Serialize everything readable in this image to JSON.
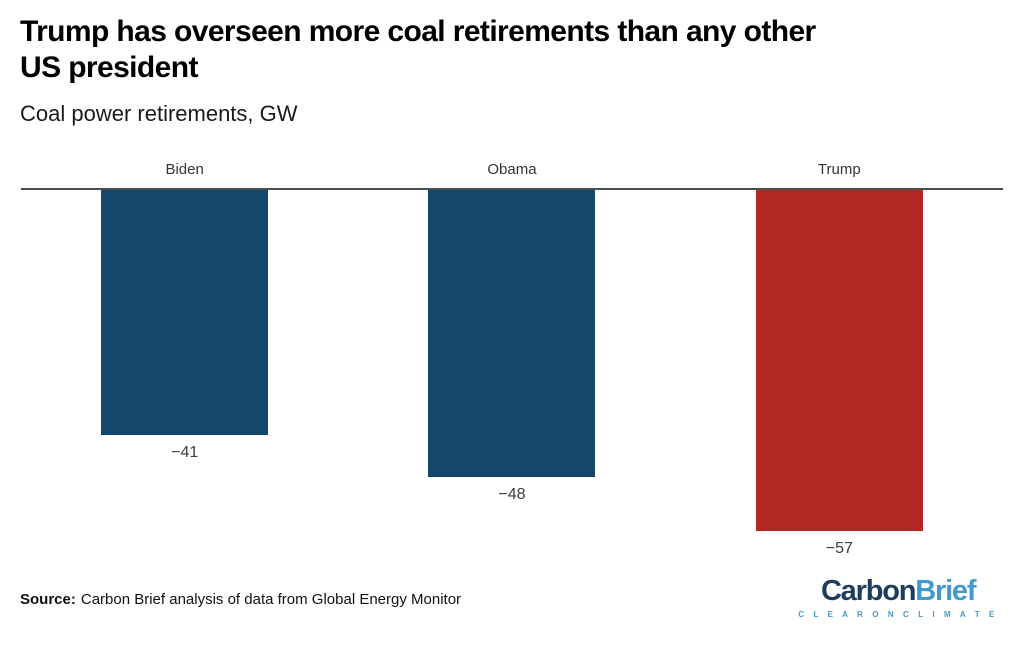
{
  "header": {
    "title": "Trump has overseen more coal retirements than any other\nUS president",
    "subtitle": "Coal power retirements, GW"
  },
  "chart_data": {
    "type": "bar",
    "categories": [
      "Biden",
      "Obama",
      "Trump"
    ],
    "values": [
      -41,
      -48,
      -57
    ],
    "value_labels": [
      "−41",
      "−48",
      "−57"
    ],
    "title": "Trump has overseen more coal retirements than any other US president",
    "subtitle": "Coal power retirements, GW",
    "xlabel": "",
    "ylabel": "GW",
    "ylim": [
      -60,
      0
    ],
    "bar_colors": [
      "#15476d",
      "#15476d",
      "#b02a23"
    ],
    "baseline_color": "#4d4d4d",
    "category_labels_position": "above-baseline",
    "value_labels_position": "below-bars",
    "grid": false,
    "legend": "none"
  },
  "footer": {
    "source_label": "Source:",
    "source_text": "Carbon Brief analysis of data from Global Energy Monitor",
    "logo": {
      "part1": "Carbon",
      "part2": "Brief",
      "tagline": "C L E A R   O N   C L I M A T E",
      "part1_color": "#1e3d5c",
      "part2_color": "#4299cc",
      "tagline_color": "#4299cc"
    }
  },
  "colors": {
    "bar_blue": "#15476d",
    "bar_red": "#b02a23",
    "baseline": "#4d4d4d",
    "value_label": "#3d3d3d",
    "category_label": "#333333"
  }
}
